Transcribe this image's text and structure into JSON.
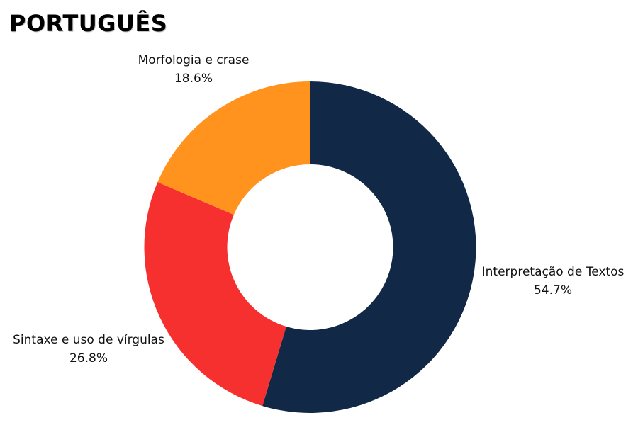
{
  "chart_data": {
    "type": "pie",
    "title": "PORTUGUÊS",
    "donut": true,
    "slices": [
      {
        "label": "Interpretação de Textos",
        "value": 54.7,
        "value_label": "54.7%",
        "color": "#112947"
      },
      {
        "label": "Sintaxe e uso de vírgulas",
        "value": 26.8,
        "value_label": "26.8%",
        "color": "#f62f2f"
      },
      {
        "label": "Morfologia e crase",
        "value": 18.6,
        "value_label": "18.6%",
        "color": "#ff931e"
      }
    ],
    "start": "top",
    "direction": "clockwise"
  }
}
